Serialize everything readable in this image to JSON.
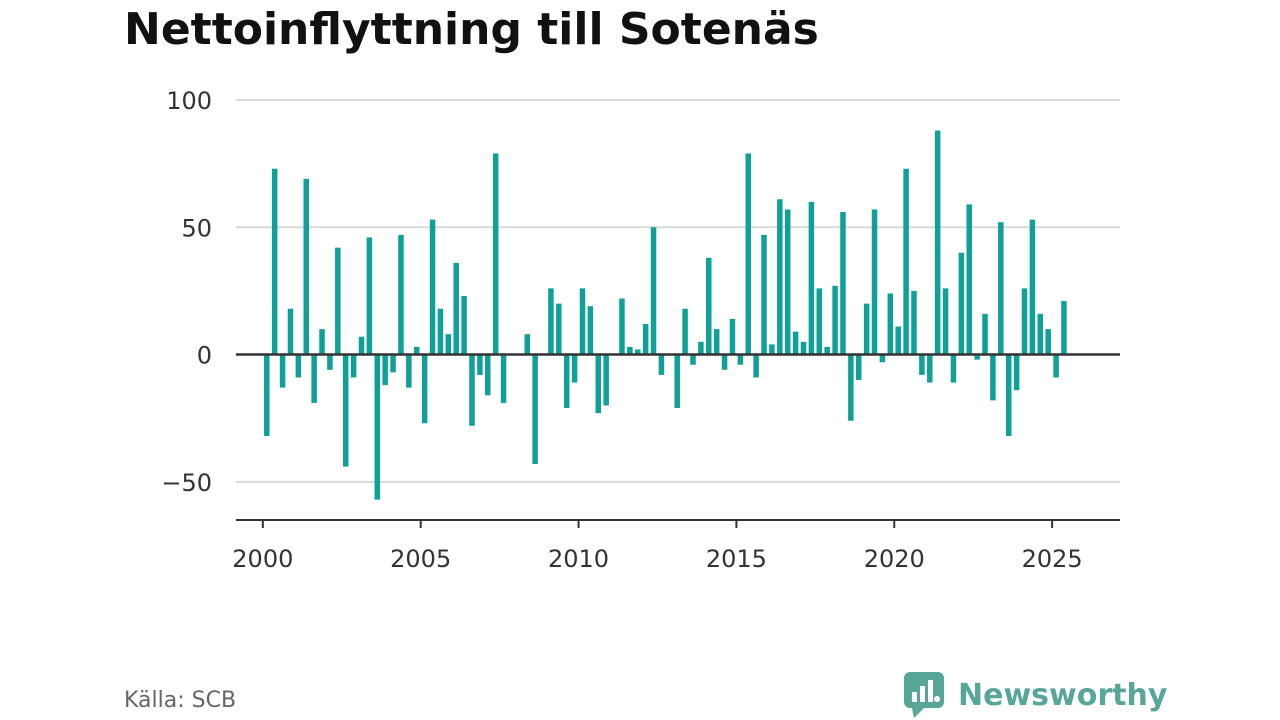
{
  "title": "Nettoinflyttning till Sotenäs",
  "source": "Källa: SCB",
  "brand": {
    "name": "Newsworthy",
    "icon": "newsworthy-logo-icon"
  },
  "colors": {
    "bar": "#0fa197",
    "brand": "#58a697",
    "axis": "#333333",
    "grid": "#d9d9d9"
  },
  "chart_data": {
    "type": "bar",
    "title": "Nettoinflyttning till Sotenäs",
    "xlabel": "",
    "ylabel": "",
    "ylim": [
      -65,
      100
    ],
    "xlim": [
      1999.15,
      2027.15
    ],
    "grid": true,
    "x_ticks": [
      "2000",
      "2005",
      "2010",
      "2015",
      "2020",
      "2025"
    ],
    "y_ticks": [
      "100",
      "50",
      "0",
      "−50"
    ],
    "x_tick_values": [
      2000,
      2005,
      2010,
      2015,
      2020,
      2025
    ],
    "y_tick_values": [
      100,
      50,
      0,
      -50
    ],
    "frequency": "quarterly",
    "x": [
      "2000 Q1",
      "2000 Q2",
      "2000 Q3",
      "2000 Q4",
      "2001 Q1",
      "2001 Q2",
      "2001 Q3",
      "2001 Q4",
      "2002 Q1",
      "2002 Q2",
      "2002 Q3",
      "2002 Q4",
      "2003 Q1",
      "2003 Q2",
      "2003 Q3",
      "2003 Q4",
      "2004 Q1",
      "2004 Q2",
      "2004 Q3",
      "2004 Q4",
      "2005 Q1",
      "2005 Q2",
      "2005 Q3",
      "2005 Q4",
      "2006 Q1",
      "2006 Q2",
      "2006 Q3",
      "2006 Q4",
      "2007 Q1",
      "2007 Q2",
      "2007 Q3",
      "2007 Q4",
      "2008 Q1",
      "2008 Q2",
      "2008 Q3",
      "2008 Q4",
      "2009 Q1",
      "2009 Q2",
      "2009 Q3",
      "2009 Q4",
      "2010 Q1",
      "2010 Q2",
      "2010 Q3",
      "2010 Q4",
      "2011 Q1",
      "2011 Q2",
      "2011 Q3",
      "2011 Q4",
      "2012 Q1",
      "2012 Q2",
      "2012 Q3",
      "2012 Q4",
      "2013 Q1",
      "2013 Q2",
      "2013 Q3",
      "2013 Q4",
      "2014 Q1",
      "2014 Q2",
      "2014 Q3",
      "2014 Q4",
      "2015 Q1",
      "2015 Q2",
      "2015 Q3",
      "2015 Q4",
      "2016 Q1",
      "2016 Q2",
      "2016 Q3",
      "2016 Q4",
      "2017 Q1",
      "2017 Q2",
      "2017 Q3",
      "2017 Q4",
      "2018 Q1",
      "2018 Q2",
      "2018 Q3",
      "2018 Q4",
      "2019 Q1",
      "2019 Q2",
      "2019 Q3",
      "2019 Q4",
      "2020 Q1",
      "2020 Q2",
      "2020 Q3",
      "2020 Q4",
      "2021 Q1",
      "2021 Q2",
      "2021 Q3",
      "2021 Q4",
      "2022 Q1",
      "2022 Q2",
      "2022 Q3",
      "2022 Q4",
      "2023 Q1",
      "2023 Q2",
      "2023 Q3",
      "2023 Q4",
      "2024 Q1",
      "2024 Q2",
      "2024 Q3",
      "2024 Q4",
      "2025 Q1",
      "2025 Q2",
      "2025 Q3"
    ],
    "values": [
      -32,
      73,
      -13,
      18,
      -9,
      69,
      -19,
      10,
      -6,
      42,
      -44,
      -9,
      7,
      46,
      -57,
      -12,
      -7,
      47,
      -13,
      3,
      -27,
      53,
      18,
      8,
      36,
      23,
      -28,
      -8,
      -16,
      79,
      -19,
      0,
      0,
      8,
      -43,
      0,
      26,
      20,
      -21,
      -11,
      26,
      19,
      -23,
      -20,
      0,
      22,
      3,
      2,
      12,
      50,
      -8,
      0,
      -21,
      18,
      -4,
      5,
      38,
      10,
      -6,
      14,
      -4,
      79,
      -9,
      47,
      4,
      61,
      57,
      9,
      5,
      60,
      26,
      3,
      27,
      56,
      -26,
      -10,
      20,
      57,
      -3,
      24,
      11,
      73,
      25,
      -8,
      -11,
      88,
      26,
      -11,
      40,
      59,
      -2,
      16,
      -18,
      52,
      -32,
      -14,
      26,
      53,
      16,
      10,
      -9,
      21,
      0
    ]
  }
}
